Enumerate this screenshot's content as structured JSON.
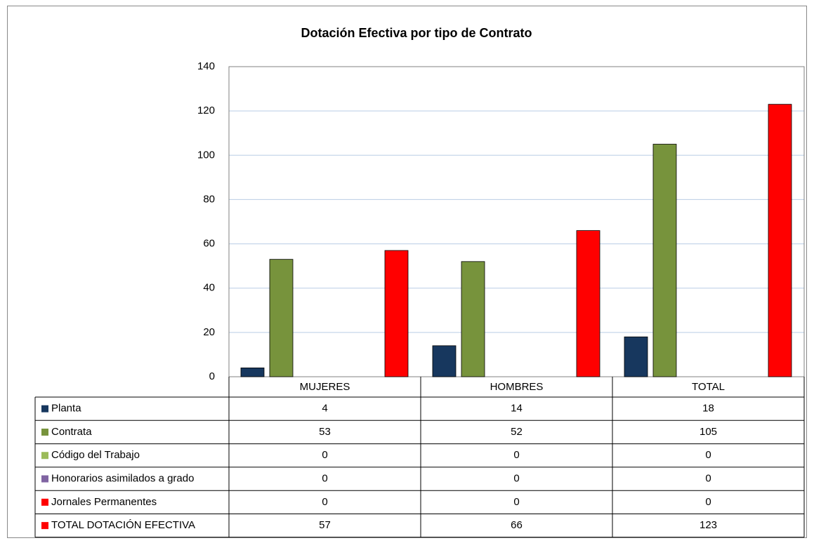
{
  "chart_data": {
    "type": "bar",
    "title": "Dotación Efectiva por tipo de Contrato",
    "categories": [
      "MUJERES",
      "HOMBRES",
      "TOTAL"
    ],
    "series": [
      {
        "name": "Planta",
        "color": "#17375e",
        "values": [
          4,
          14,
          18
        ]
      },
      {
        "name": "Contrata",
        "color": "#77933c",
        "values": [
          53,
          52,
          105
        ]
      },
      {
        "name": "Código del Trabajo",
        "color": "#9bbb59",
        "values": [
          0,
          0,
          0
        ]
      },
      {
        "name": "Honorarios asimilados a grado",
        "color": "#8064a2",
        "values": [
          0,
          0,
          0
        ]
      },
      {
        "name": "Jornales Permanentes",
        "color": "#ff0000",
        "values": [
          0,
          0,
          0
        ]
      },
      {
        "name": "TOTAL DOTACIÓN EFECTIVA",
        "color": "#ff0000",
        "values": [
          57,
          66,
          123
        ]
      }
    ],
    "ylim": [
      0,
      140
    ],
    "yticks": [
      0,
      20,
      40,
      60,
      80,
      100,
      120,
      140
    ],
    "grid": true
  }
}
